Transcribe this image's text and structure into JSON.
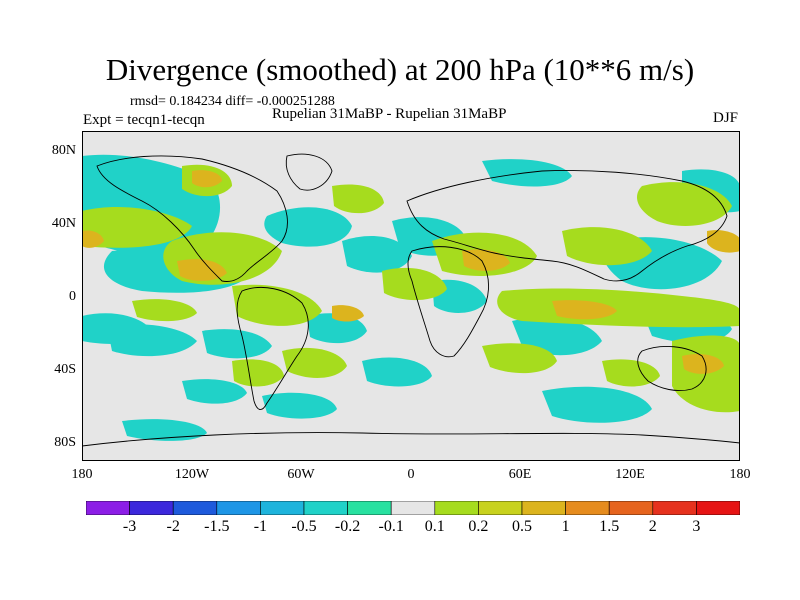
{
  "title": "Divergence (smoothed) at 200 hPa (10**6 m/s)",
  "stats": "rmsd= 0.184234 diff= -0.000251288",
  "experiment": "Expt = tecqn1-tecqn",
  "center_label": "Rupelian 31MaBP - Rupelian 31MaBP",
  "season": "DJF",
  "lat_labels": [
    "80N",
    "40N",
    "0",
    "40S",
    "80S"
  ],
  "lon_labels": [
    "180",
    "120W",
    "60W",
    "0",
    "60E",
    "120E",
    "180"
  ],
  "colorbar": {
    "labels": [
      "-3",
      "-2",
      "-1.5",
      "-1",
      "-0.5",
      "-0.2",
      "-0.1",
      "0.1",
      "0.2",
      "0.5",
      "1",
      "1.5",
      "2",
      "3"
    ],
    "colors": [
      "#8c1ee6",
      "#3c28dc",
      "#1e5adc",
      "#1e96e6",
      "#1eb4dc",
      "#20d2c8",
      "#28e1a0",
      "#e6e6e6",
      "#a6dc1e",
      "#c8d21e",
      "#dcb41e",
      "#e68c1e",
      "#e6641e",
      "#e6321e",
      "#e61414"
    ]
  },
  "colors": {
    "background": "#e6e6e6",
    "land_outline": "#000000"
  }
}
